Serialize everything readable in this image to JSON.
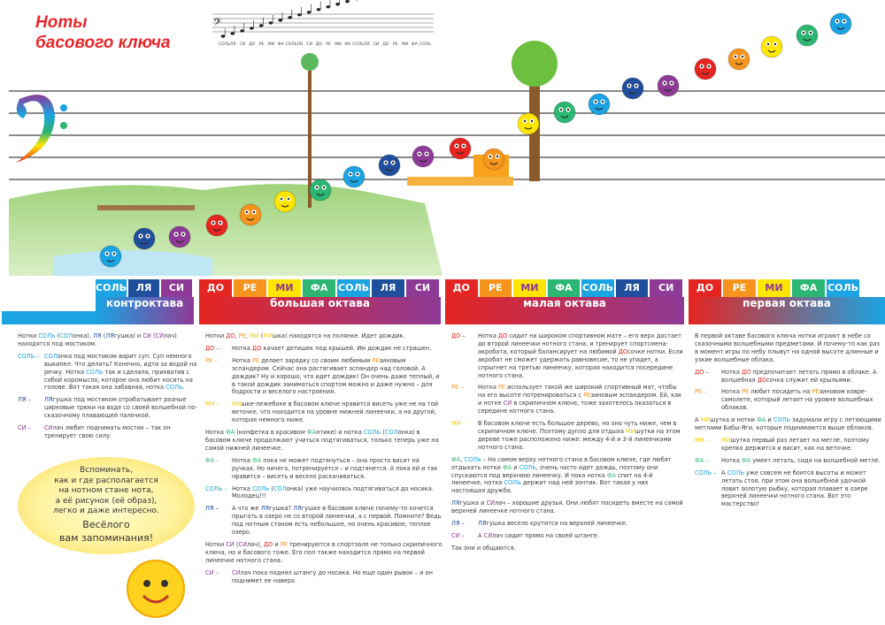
{
  "title_line1": "Ноты",
  "title_line2": "басового ключа",
  "colors": {
    "do": "#e52521",
    "re": "#f7941d",
    "mi": "#ffe600",
    "fa": "#2bb673",
    "sol": "#1ba3e2",
    "la": "#1f4e9c",
    "si": "#8e3a96",
    "mi_text": "#f2cc00"
  },
  "mini_staff_notes": [
    "СОЛЬ",
    "ЛЯ",
    "СИ",
    "ДО",
    "РЕ",
    "МИ",
    "ФА",
    "СОЛЬ",
    "ЛЯ",
    "СИ",
    "ДО",
    "РЕ",
    "МИ",
    "ФА",
    "СОЛЬ",
    "ЛЯ",
    "СИ",
    "ДО",
    "РЕ",
    "МИ",
    "ФА",
    "СОЛЬ"
  ],
  "octaves": [
    {
      "name": "контроктава",
      "notes": [
        [
          "СОЛЬ",
          "sol"
        ],
        [
          "ЛЯ",
          "la"
        ],
        [
          "СИ",
          "si"
        ]
      ]
    },
    {
      "name": "большая октава",
      "notes": [
        [
          "ДО",
          "do"
        ],
        [
          "РЕ",
          "re"
        ],
        [
          "МИ",
          "mi"
        ],
        [
          "ФА",
          "fa"
        ],
        [
          "СОЛЬ",
          "sol"
        ],
        [
          "ЛЯ",
          "la"
        ],
        [
          "СИ",
          "si"
        ]
      ]
    },
    {
      "name": "малая октава",
      "notes": [
        [
          "ДО",
          "do"
        ],
        [
          "РЕ",
          "re"
        ],
        [
          "МИ",
          "mi"
        ],
        [
          "ФА",
          "fa"
        ],
        [
          "СОЛЬ",
          "sol"
        ],
        [
          "ЛЯ",
          "la"
        ],
        [
          "СИ",
          "si"
        ]
      ]
    },
    {
      "name": "первая октава",
      "notes": [
        [
          "ДО",
          "do"
        ],
        [
          "РЕ",
          "re"
        ],
        [
          "МИ",
          "mi"
        ],
        [
          "ФА",
          "fa"
        ],
        [
          "СОЛЬ",
          "sol"
        ]
      ]
    }
  ],
  "columns": [
    [
      {
        "segs": [
          "Нотки ",
          [
            "СОЛЬ",
            "sol"
          ],
          " (",
          [
            "СОЛ",
            "sol"
          ],
          "онка), ",
          [
            "ЛЯ",
            "la"
          ],
          " (",
          [
            "ЛЯ",
            "la"
          ],
          "гушка) и ",
          [
            "СИ",
            "si"
          ],
          " (",
          [
            "СИ",
            "si"
          ],
          "лач) находятся под мостиком."
        ]
      },
      {
        "label": [
          "СОЛЬ –",
          "sol"
        ],
        "segs": [
          [
            "СОЛ",
            "sol"
          ],
          "онка под мостиком варит суп. Суп немного выкипел. Что делать? Конечно, идти за водой на речку. Нотка ",
          [
            "СОЛЬ",
            "sol"
          ],
          " так и сделала, прихватив с собой коромысло, которое она любит носить на голове. Вот такая она забавная, нотка ",
          [
            "СОЛЬ",
            "sol"
          ],
          "."
        ]
      },
      {
        "label": [
          "ЛЯ –",
          "la"
        ],
        "segs": [
          [
            "ЛЯ",
            "la"
          ],
          "гушка под мостиком отрабатывает разные цирковые трюки на воде со своей волшебной по-сказочному плавающей палочкой."
        ]
      },
      {
        "label": [
          "СИ –",
          "si"
        ],
        "segs": [
          [
            "СИ",
            "si"
          ],
          "лач любит поднимать мостик – так он тренирует свою силу."
        ]
      }
    ],
    [
      {
        "segs": [
          "Нотки ",
          [
            "ДО",
            "do"
          ],
          ", ",
          [
            "РЕ",
            "re"
          ],
          ", ",
          [
            "МИ",
            "mi"
          ],
          " (",
          [
            "МИ",
            "mi"
          ],
          "шка) находятся на полянке. Идет дождик."
        ]
      },
      {
        "label": [
          "ДО –",
          "do"
        ],
        "segs": [
          "Нотка ",
          [
            "ДО",
            "do"
          ],
          " качает детишек под крышей. Им дождик не страшен."
        ]
      },
      {
        "label": [
          "РЕ –",
          "re"
        ],
        "segs": [
          "Нотка ",
          [
            "РЕ",
            "re"
          ],
          " делает зарядку со своим любимым ",
          [
            "РЕ",
            "re"
          ],
          "зиновым эспандером. Сейчас она растягивает эспандер над головой. А дождик? Ну и хорошо, что идет дождик! Он очень даже теплый, и в такой дождик заниматься спортом можно и даже нужно – для бодрости и веселого настроения."
        ]
      },
      {
        "label": [
          "МИ –",
          "mi"
        ],
        "segs": [
          [
            "МИ",
            "mi"
          ],
          "шке-лежебоке в басовом ключе нравится висеть уже не на той веточке, что находится на уровне нижней линеечки, а на другой, которая немного ниже."
        ]
      },
      {
        "segs": [
          "Нотка ",
          [
            "ФА",
            "fa"
          ],
          " (конфетка в красивом ",
          [
            "ФА",
            "fa"
          ],
          "нтике) и нотка ",
          [
            "СОЛЬ",
            "sol"
          ],
          " (",
          [
            "СОЛ",
            "sol"
          ],
          "онка) в басовом ключе продолжают учиться подтягиваться, только теперь уже на самой нижней линеечке."
        ]
      },
      {
        "label": [
          "ФА –",
          "fa"
        ],
        "segs": [
          "Нотка ",
          [
            "ФА",
            "fa"
          ],
          " пока не может подтянуться – она просто висит на ручках. Но ничего, потренируется – и подтянется. А пока ей и так нравится – висеть и весело раскачиваться."
        ]
      },
      {
        "label": [
          "СОЛЬ –",
          "sol"
        ],
        "segs": [
          "Нотка ",
          [
            "СОЛЬ",
            "sol"
          ],
          " (",
          [
            "СОЛ",
            "sol"
          ],
          "онка) уже научилась подтягиваться до носика. Молодец!!!"
        ]
      },
      {
        "label": [
          "ЛЯ –",
          "la"
        ],
        "segs": [
          "А что же ",
          [
            "ЛЯ",
            "la"
          ],
          "гушка? ",
          [
            "ЛЯ",
            "la"
          ],
          "гушке в басовом ключе почему-то хочется прыгать в озеро не со второй линеечки, а с первой. Помните? Ведь под нотным станом есть небольшое, но очень красивое, теплое озеро."
        ]
      },
      {
        "segs": [
          "Нотки ",
          [
            "СИ",
            "si"
          ],
          " (",
          [
            "СИ",
            "si"
          ],
          "лач), ",
          [
            "ДО",
            "do"
          ],
          " и ",
          [
            "РЕ",
            "re"
          ],
          " тренируются в спортзале не только скрипичного ключа, но и басового тоже. Его пол также находится прямо на первой линеечке нотного стана."
        ]
      },
      {
        "label": [
          "СИ –",
          "si"
        ],
        "segs": [
          [
            "СИ",
            "si"
          ],
          "лач пока поднял штангу до носика. Но еще один рывок – и он поднимет ее наверх."
        ]
      }
    ],
    [
      {
        "label": [
          "ДО –",
          "do"
        ],
        "segs": [
          "Нотка ",
          [
            "ДО",
            "do"
          ],
          " сидит на широком спортивном мате – его верх достает до второй линеечки нотного стана, и тренирует спортсмена-акробата, который балансирует на любимой ",
          [
            "ДО",
            "do"
          ],
          "сочке нотки. Если акробат не сможет удержать равновесие, то не упадет, а спрыгнет на третью линеечку, которая находится посередине нотного стана."
        ]
      },
      {
        "label": [
          "РЕ –",
          "re"
        ],
        "segs": [
          "Нотка ",
          [
            "РЕ",
            "re"
          ],
          " использует такой же широкий спортивный мат, чтобы на его высоте потренироваться с ",
          [
            "РЕ",
            "re"
          ],
          "зиновым эспандером. Ей, как и нотке ",
          [
            "СИ",
            "si"
          ],
          " в скрипичном ключе, тоже захотелось оказаться в середине нотного стана."
        ]
      },
      {
        "label": [
          "МИ –",
          "mi"
        ],
        "segs": [
          "В басовом ключе есть большое дерево, но оно чуть ниже, чем в скрипичном ключе. Поэтому дупло для отдыха ",
          [
            "МИ",
            "mi"
          ],
          "шутки на этом дереве тоже расположено ниже: между 4-й и 3-й линеечками нотного стана."
        ]
      },
      {
        "segs": [
          [
            "ФА",
            "fa"
          ],
          ", ",
          [
            "СОЛЬ",
            "sol"
          ],
          " – На самом верху нотного стана в басовом ключе, где любят отдыхать нотки ",
          [
            "ФА",
            "fa"
          ],
          " и ",
          [
            "СОЛЬ",
            "sol"
          ],
          ", очень часто идет дождь, поэтому они спускаются под верхнюю линеечку. И пока нотка ",
          [
            "ФА",
            "fa"
          ],
          " спит на 4-й линеечке, нотка ",
          [
            "СОЛЬ",
            "sol"
          ],
          " держит над ней зонтик. Вот такая у них настоящая дружба."
        ]
      },
      {
        "segs": [
          [
            "ЛЯ",
            "la"
          ],
          "гушка и ",
          [
            "СИ",
            "si"
          ],
          "лач – хорошие друзья. Они любят посидеть вместе на самой верхней линеечке нотного стана."
        ]
      },
      {
        "label": [
          "ЛЯ –",
          "la"
        ],
        "segs": [
          [
            "ЛЯ",
            "la"
          ],
          "гушка весело крутится на верхней линеечке."
        ]
      },
      {
        "label": [
          "СИ –",
          "si"
        ],
        "segs": [
          "А ",
          [
            "СИ",
            "si"
          ],
          "лач сидит прямо на своей штанге."
        ]
      },
      {
        "segs": [
          "Так они и общаются."
        ]
      }
    ],
    [
      {
        "segs": [
          "В первой октаве басового ключа нотки играют в небе со сказочными волшебными предметами. И почему-то как раз в момент игры по небу плывут на одной высоте длинные и узкие волшебные облака."
        ]
      },
      {
        "label": [
          "ДО –",
          "do"
        ],
        "segs": [
          "Нотка ",
          [
            "ДО",
            "do"
          ],
          " предпочитает летать прямо в облаке. А волшебная ",
          [
            "ДО",
            "do"
          ],
          "сочка служит ей крыльями."
        ]
      },
      {
        "label": [
          "РЕ –",
          "re"
        ],
        "segs": [
          "Нотка ",
          [
            "РЕ",
            "re"
          ],
          " любит посидеть на ",
          [
            "РЕ",
            "re"
          ],
          "зиновом ковре-самолете, который летает на уровне волшебных облаков."
        ]
      },
      {
        "segs": [
          "А ",
          [
            "МИ",
            "mi"
          ],
          "шутка и нотки ",
          [
            "ФА",
            "fa"
          ],
          " и ",
          [
            "СОЛЬ",
            "sol"
          ],
          " задумали игру с летающими метлами Бабы-Яги, которые поднимаются выше облаков."
        ]
      },
      {
        "label": [
          "МИ –",
          "mi"
        ],
        "segs": [
          [
            "МИ",
            "mi"
          ],
          "шутка первый раз летает на метле, поэтому крепко держится и висит, как на веточке."
        ]
      },
      {
        "label": [
          "ФА –",
          "fa"
        ],
        "segs": [
          "Нотка ",
          [
            "ФА",
            "fa"
          ],
          " умеет летать, сидя на волшебной метле."
        ]
      },
      {
        "label": [
          "СОЛЬ –",
          "sol"
        ],
        "segs": [
          "А ",
          [
            "СОЛЬ",
            "sol"
          ],
          " уже совсем не боится высоты и может летать стоя, при этом она волшебной удочкой ловит золотую рыбку, которая плавает в озере верхней линеечки нотного стана. Вот это мастерство!"
        ]
      }
    ]
  ],
  "bubble": {
    "l1": "Вспоминать,",
    "l2": "как и где располагается",
    "l3": "на нотном стане нота,",
    "l4": "а её рисунок (её образ),",
    "l5": "легко и даже интересно.",
    "l6": "Весёлого",
    "l7": "вам запоминания!"
  }
}
